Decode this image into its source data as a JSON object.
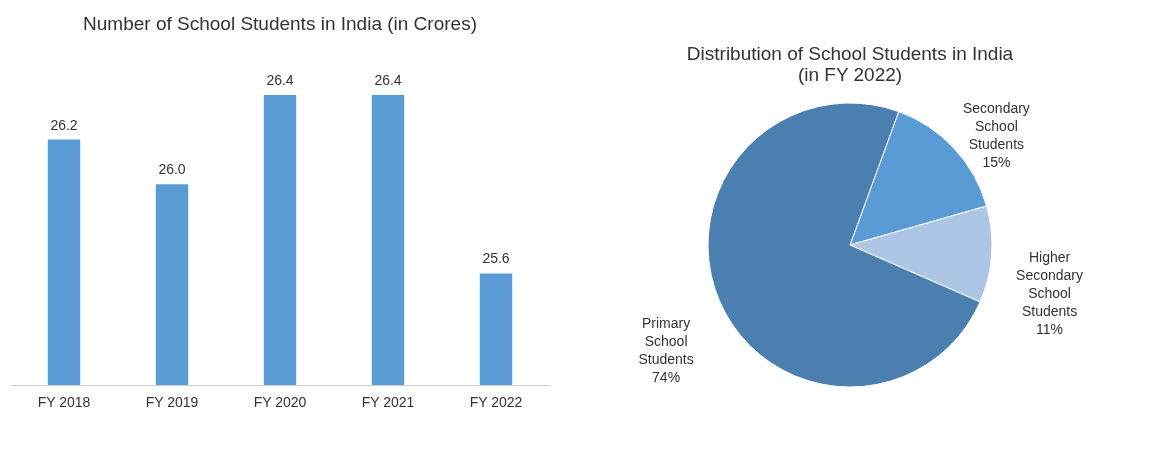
{
  "chart_data": [
    {
      "type": "bar",
      "title": "Number of School Students in India (in Crores)",
      "categories": [
        "FY 2018",
        "FY 2019",
        "FY 2020",
        "FY 2021",
        "FY 2022"
      ],
      "values": [
        26.2,
        26.0,
        26.4,
        26.4,
        25.6
      ],
      "color": "#5b9bd5",
      "value_labels": [
        "26.2",
        "26.0",
        "26.4",
        "26.4",
        "25.6"
      ],
      "ylim": [
        25.1,
        26.4
      ]
    },
    {
      "type": "pie",
      "title": "Distribution of School Students in India (in FY 2022)",
      "categories": [
        "Secondary School Students",
        "Higher Secondary School Students",
        "Primary School Students"
      ],
      "values": [
        15,
        11,
        74
      ],
      "colors": [
        "#5b9bd5",
        "#adc6e5",
        "#4a7fb0"
      ],
      "value_labels": [
        "15%",
        "11%",
        "74%"
      ]
    }
  ]
}
